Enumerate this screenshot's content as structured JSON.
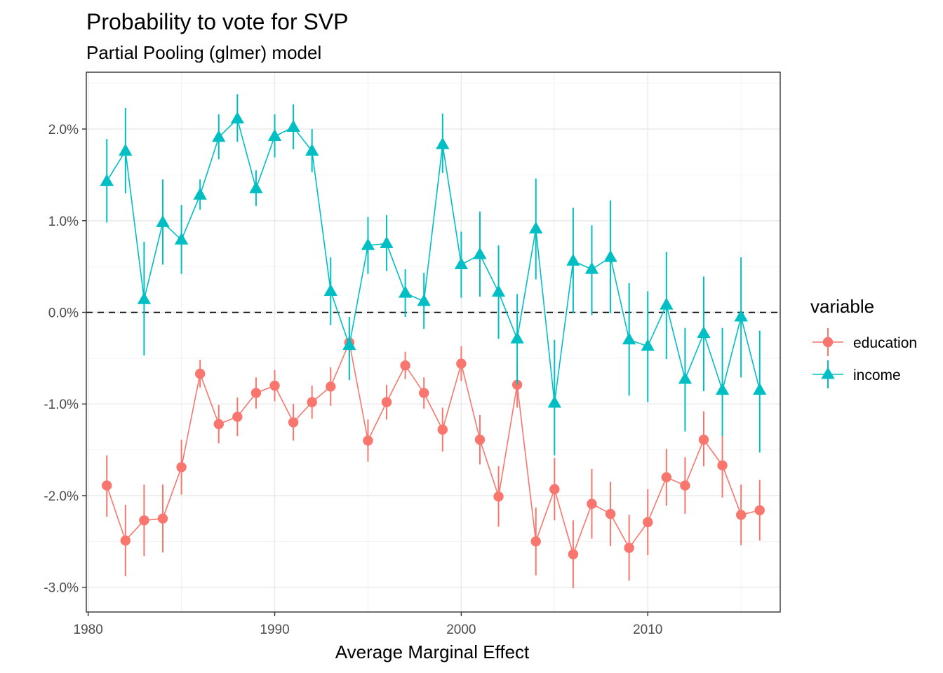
{
  "chart_data": {
    "type": "line",
    "title": "Probability to vote for SVP",
    "subtitle": "Partial Pooling (glmer) model",
    "xlabel": "Average Marginal Effect",
    "ylabel": "",
    "xlim": [
      1979.9,
      2017.1
    ],
    "ylim": [
      -3.27,
      2.62
    ],
    "x_ticks": [
      1980,
      1990,
      2000,
      2010
    ],
    "x_tick_labels": [
      "1980",
      "1990",
      "2000",
      "2010"
    ],
    "y_ticks": [
      2,
      1,
      0,
      -1,
      -2,
      -3
    ],
    "y_tick_labels": [
      "2.0%",
      "1.0%",
      "0.0%",
      "-1.0%",
      "-2.0%",
      "-3.0%"
    ],
    "reference_line": {
      "y": 0,
      "style": "dashed"
    },
    "grid": true,
    "legend": {
      "title": "variable",
      "position": "right"
    },
    "x": [
      1981,
      1982,
      1983,
      1984,
      1985,
      1986,
      1987,
      1988,
      1989,
      1990,
      1991,
      1992,
      1993,
      1994,
      1995,
      1996,
      1997,
      1998,
      1999,
      2000,
      2001,
      2002,
      2003,
      2004,
      2005,
      2006,
      2007,
      2008,
      2009,
      2010,
      2011,
      2012,
      2013,
      2014,
      2015,
      2016
    ],
    "series": [
      {
        "name": "education",
        "color": "#F8766D",
        "marker": "circle",
        "values": [
          -1.89,
          -2.49,
          -2.27,
          -2.25,
          -1.69,
          -0.67,
          -1.22,
          -1.14,
          -0.88,
          -0.8,
          -1.2,
          -0.98,
          -0.81,
          -0.33,
          -1.4,
          -0.98,
          -0.58,
          -0.88,
          -1.28,
          -0.56,
          -1.39,
          -2.01,
          -0.79,
          -2.5,
          -1.93,
          -2.64,
          -2.09,
          -2.2,
          -2.57,
          -2.29,
          -1.8,
          -1.89,
          -1.39,
          -1.67,
          -2.21,
          -2.16
        ],
        "lower": [
          -2.23,
          -2.88,
          -2.66,
          -2.62,
          -1.99,
          -0.82,
          -1.43,
          -1.35,
          -1.05,
          -0.97,
          -1.4,
          -1.16,
          -1.02,
          -0.49,
          -1.63,
          -1.17,
          -0.73,
          -1.05,
          -1.52,
          -0.75,
          -1.66,
          -2.34,
          -1.04,
          -2.87,
          -2.27,
          -3.01,
          -2.47,
          -2.55,
          -2.93,
          -2.65,
          -2.11,
          -2.2,
          -1.68,
          -2.02,
          -2.54,
          -2.49
        ],
        "upper": [
          -1.56,
          -2.1,
          -1.88,
          -1.88,
          -1.39,
          -0.52,
          -1.01,
          -0.93,
          -0.71,
          -0.63,
          -1.0,
          -0.8,
          -0.6,
          -0.17,
          -1.17,
          -0.79,
          -0.43,
          -0.71,
          -1.04,
          -0.37,
          -1.12,
          -1.68,
          -0.54,
          -2.13,
          -1.59,
          -2.27,
          -1.71,
          -1.85,
          -2.21,
          -1.93,
          -1.49,
          -1.58,
          -1.08,
          -1.32,
          -1.88,
          -1.83
        ]
      },
      {
        "name": "income",
        "color": "#00BFC4",
        "marker": "triangle",
        "values": [
          1.43,
          1.76,
          0.14,
          0.98,
          0.79,
          1.28,
          1.91,
          2.11,
          1.35,
          1.92,
          2.02,
          1.76,
          0.23,
          -0.36,
          0.73,
          0.75,
          0.21,
          0.12,
          1.83,
          0.52,
          0.63,
          0.22,
          -0.29,
          0.91,
          -0.99,
          0.56,
          0.47,
          0.6,
          -0.3,
          -0.37,
          0.08,
          -0.73,
          -0.23,
          -0.85,
          -0.05,
          -0.85
        ],
        "lower": [
          0.98,
          1.3,
          -0.47,
          0.52,
          0.42,
          1.12,
          1.67,
          1.86,
          1.16,
          1.69,
          1.78,
          1.53,
          -0.14,
          -0.74,
          0.42,
          0.45,
          -0.05,
          -0.18,
          1.52,
          0.16,
          0.17,
          -0.29,
          -0.79,
          0.36,
          -1.56,
          -0.01,
          -0.03,
          -0.01,
          -0.91,
          -0.98,
          -0.51,
          -1.3,
          -0.86,
          -1.35,
          -0.71,
          -1.53
        ],
        "upper": [
          1.89,
          2.23,
          0.77,
          1.45,
          1.17,
          1.45,
          2.16,
          2.38,
          1.55,
          2.16,
          2.27,
          2.0,
          0.6,
          -0.05,
          1.04,
          1.06,
          0.47,
          0.43,
          2.17,
          0.88,
          1.1,
          0.73,
          0.2,
          1.46,
          -0.3,
          1.14,
          0.95,
          1.22,
          0.32,
          0.23,
          0.66,
          -0.17,
          0.39,
          -0.17,
          0.6,
          -0.2
        ]
      }
    ]
  }
}
